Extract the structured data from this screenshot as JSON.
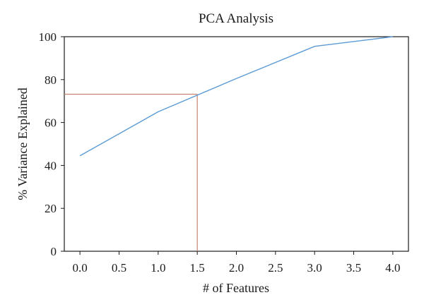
{
  "chart_data": {
    "type": "line",
    "title": "PCA Analysis",
    "xlabel": "# of Features",
    "ylabel": "% Variance Explained",
    "xlim": [
      -0.2,
      4.2
    ],
    "ylim": [
      0,
      100
    ],
    "xticks": [
      "0.0",
      "0.5",
      "1.0",
      "1.5",
      "2.0",
      "2.5",
      "3.0",
      "3.5",
      "4.0"
    ],
    "yticks": [
      "0",
      "20",
      "40",
      "60",
      "80",
      "100"
    ],
    "grid": false,
    "series": [
      {
        "color": "#5b9bd5",
        "x": [
          0,
          1,
          2,
          3,
          4
        ],
        "y": [
          44.5,
          65,
          80.5,
          95.5,
          100
        ]
      }
    ],
    "reference_lines": {
      "color": "#c8826e",
      "x": 1.5,
      "y": 73.2
    }
  }
}
